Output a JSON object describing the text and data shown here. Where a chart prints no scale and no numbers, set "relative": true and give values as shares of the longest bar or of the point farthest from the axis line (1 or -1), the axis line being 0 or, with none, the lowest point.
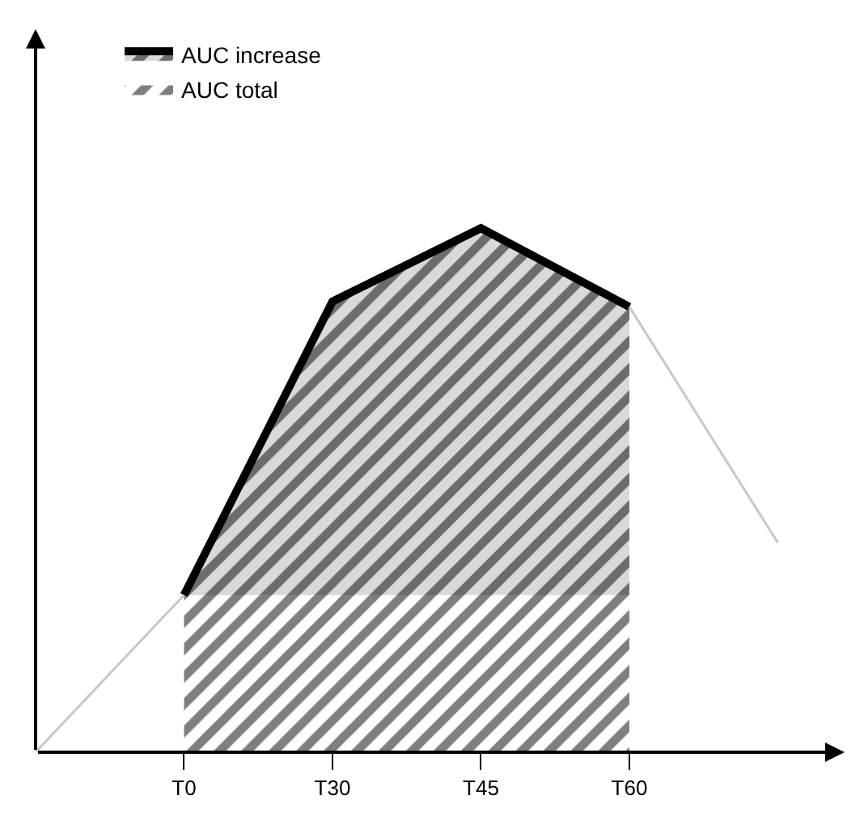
{
  "chart_data": {
    "type": "area",
    "relative": true,
    "categories": [
      null,
      "T0",
      "T30",
      "T45",
      "T60",
      null
    ],
    "series": [
      {
        "name": "AUC total",
        "color": "#000000",
        "values": [
          null,
          0.3,
          0.86,
          1,
          0.85,
          null
        ]
      },
      {
        "name": "AUC increase",
        "color": "#d9d9d9",
        "values": [
          null,
          0.3,
          0.86,
          1,
          0.85,
          null
        ]
      },
      {
        "type": "line",
        "color": "#c8c8c8",
        "values": [
          0,
          0.3,
          null,
          null,
          0.85,
          0.4
        ]
      }
    ],
    "legend": "top left",
    "marker": "none"
  }
}
